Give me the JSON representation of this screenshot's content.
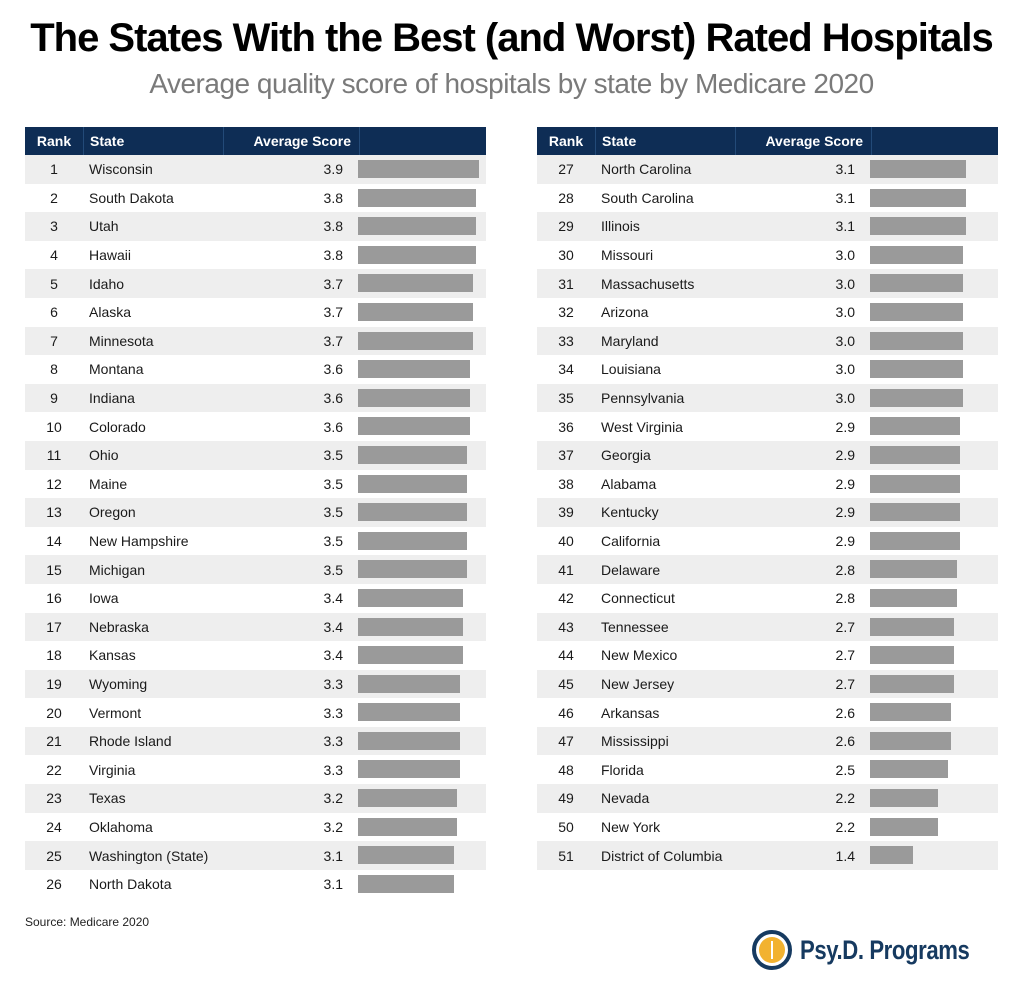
{
  "header": {
    "title": "The States With the Best (and Worst) Rated Hospitals",
    "subtitle": "Average quality score of hospitals by state by Medicare 2020"
  },
  "columns": {
    "rank": "Rank",
    "state": "State",
    "score": "Average Score"
  },
  "footer": {
    "source": "Source: Medicare 2020",
    "logo_text": "Psy.D. Programs"
  },
  "colors": {
    "header_bg": "#0e2d55",
    "bar": "#9a9a9a",
    "row_alt": "#eeeeee",
    "logo_navy": "#163a60",
    "logo_gold": "#f2b230"
  },
  "chart_data": {
    "type": "table",
    "title": "The States With the Best (and Worst) Rated Hospitals",
    "subtitle": "Average quality score of hospitals by state by Medicare 2020",
    "columns": [
      "Rank",
      "State",
      "Average Score"
    ],
    "bar_scale_max": 3.9,
    "rows": [
      {
        "rank": "1",
        "state": "Wisconsin",
        "score": "3.9"
      },
      {
        "rank": "2",
        "state": "South Dakota",
        "score": "3.8"
      },
      {
        "rank": "3",
        "state": "Utah",
        "score": "3.8"
      },
      {
        "rank": "4",
        "state": "Hawaii",
        "score": "3.8"
      },
      {
        "rank": "5",
        "state": "Idaho",
        "score": "3.7"
      },
      {
        "rank": "6",
        "state": "Alaska",
        "score": "3.7"
      },
      {
        "rank": "7",
        "state": "Minnesota",
        "score": "3.7"
      },
      {
        "rank": "8",
        "state": "Montana",
        "score": "3.6"
      },
      {
        "rank": "9",
        "state": "Indiana",
        "score": "3.6"
      },
      {
        "rank": "10",
        "state": "Colorado",
        "score": "3.6"
      },
      {
        "rank": "11",
        "state": "Ohio",
        "score": "3.5"
      },
      {
        "rank": "12",
        "state": "Maine",
        "score": "3.5"
      },
      {
        "rank": "13",
        "state": "Oregon",
        "score": "3.5"
      },
      {
        "rank": "14",
        "state": "New Hampshire",
        "score": "3.5"
      },
      {
        "rank": "15",
        "state": "Michigan",
        "score": "3.5"
      },
      {
        "rank": "16",
        "state": "Iowa",
        "score": "3.4"
      },
      {
        "rank": "17",
        "state": "Nebraska",
        "score": "3.4"
      },
      {
        "rank": "18",
        "state": "Kansas",
        "score": "3.4"
      },
      {
        "rank": "19",
        "state": "Wyoming",
        "score": "3.3"
      },
      {
        "rank": "20",
        "state": "Vermont",
        "score": "3.3"
      },
      {
        "rank": "21",
        "state": "Rhode Island",
        "score": "3.3"
      },
      {
        "rank": "22",
        "state": "Virginia",
        "score": "3.3"
      },
      {
        "rank": "23",
        "state": "Texas",
        "score": "3.2"
      },
      {
        "rank": "24",
        "state": "Oklahoma",
        "score": "3.2"
      },
      {
        "rank": "25",
        "state": "Washington (State)",
        "score": "3.1"
      },
      {
        "rank": "26",
        "state": "North Dakota",
        "score": "3.1"
      },
      {
        "rank": "27",
        "state": "North Carolina",
        "score": "3.1"
      },
      {
        "rank": "28",
        "state": "South Carolina",
        "score": "3.1"
      },
      {
        "rank": "29",
        "state": "Illinois",
        "score": "3.1"
      },
      {
        "rank": "30",
        "state": "Missouri",
        "score": "3.0"
      },
      {
        "rank": "31",
        "state": "Massachusetts",
        "score": "3.0"
      },
      {
        "rank": "32",
        "state": "Arizona",
        "score": "3.0"
      },
      {
        "rank": "33",
        "state": "Maryland",
        "score": "3.0"
      },
      {
        "rank": "34",
        "state": "Louisiana",
        "score": "3.0"
      },
      {
        "rank": "35",
        "state": "Pennsylvania",
        "score": "3.0"
      },
      {
        "rank": "36",
        "state": "West Virginia",
        "score": "2.9"
      },
      {
        "rank": "37",
        "state": "Georgia",
        "score": "2.9"
      },
      {
        "rank": "38",
        "state": "Alabama",
        "score": "2.9"
      },
      {
        "rank": "39",
        "state": "Kentucky",
        "score": "2.9"
      },
      {
        "rank": "40",
        "state": "California",
        "score": "2.9"
      },
      {
        "rank": "41",
        "state": "Delaware",
        "score": "2.8"
      },
      {
        "rank": "42",
        "state": "Connecticut",
        "score": "2.8"
      },
      {
        "rank": "43",
        "state": "Tennessee",
        "score": "2.7"
      },
      {
        "rank": "44",
        "state": "New Mexico",
        "score": "2.7"
      },
      {
        "rank": "45",
        "state": "New Jersey",
        "score": "2.7"
      },
      {
        "rank": "46",
        "state": "Arkansas",
        "score": "2.6"
      },
      {
        "rank": "47",
        "state": "Mississippi",
        "score": "2.6"
      },
      {
        "rank": "48",
        "state": "Florida",
        "score": "2.5"
      },
      {
        "rank": "49",
        "state": "Nevada",
        "score": "2.2"
      },
      {
        "rank": "50",
        "state": "New York",
        "score": "2.2"
      },
      {
        "rank": "51",
        "state": "District of Columbia",
        "score": "1.4"
      }
    ]
  }
}
